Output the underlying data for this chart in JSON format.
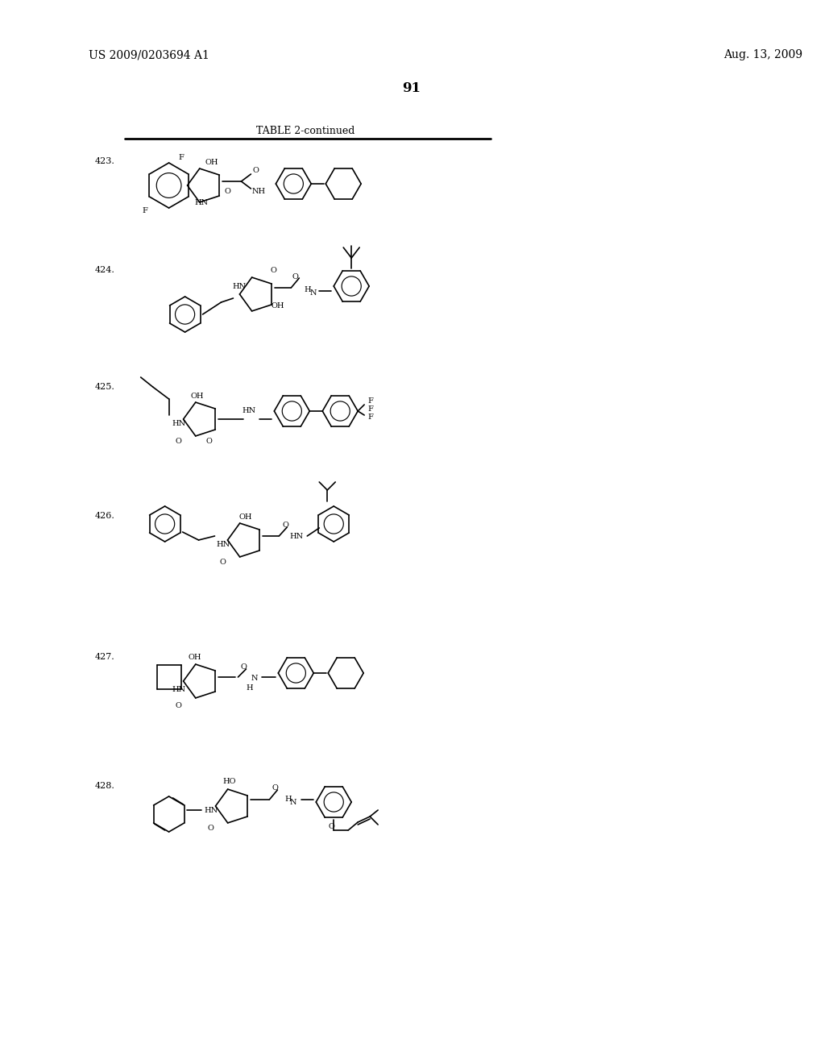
{
  "background_color": "#ffffff",
  "page_number": "91",
  "header_left": "US 2009/0203694 A1",
  "header_right": "Aug. 13, 2009",
  "table_title": "TABLE 2-continued",
  "compounds": [
    {
      "number": "423."
    },
    {
      "number": "424."
    },
    {
      "number": "425."
    },
    {
      "number": "426."
    },
    {
      "number": "427."
    },
    {
      "number": "428."
    }
  ],
  "line_color": "#000000",
  "text_color": "#000000",
  "font_size_header": 10,
  "font_size_table_title": 9,
  "font_size_compound": 8,
  "font_size_page": 12
}
